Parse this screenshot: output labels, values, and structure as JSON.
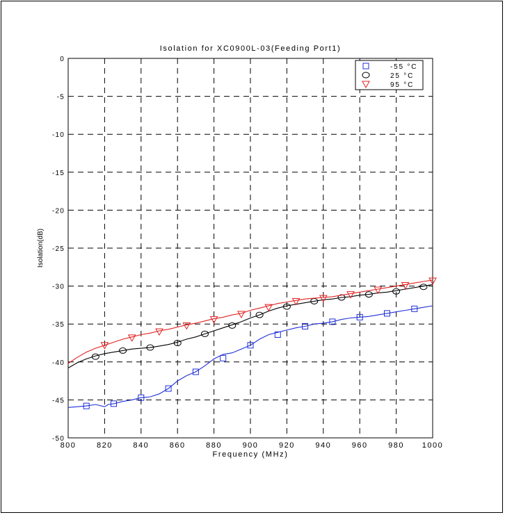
{
  "chart_data": {
    "type": "line",
    "title": "Isolation for XC0900L-03(Feeding Port1)",
    "xlabel": "Frequency (MHz)",
    "ylabel": "Isolation(dB)",
    "xlim": [
      800,
      1000
    ],
    "ylim": [
      -50,
      0
    ],
    "x_ticks": [
      800,
      820,
      840,
      860,
      880,
      900,
      920,
      940,
      960,
      980,
      1000
    ],
    "x_tick_labels": [
      "800",
      "820",
      "840",
      "860",
      "880",
      "900",
      "920",
      "940",
      "960",
      "980",
      "1000"
    ],
    "y_ticks": [
      0,
      -5,
      -10,
      -15,
      -20,
      -25,
      -30,
      -35,
      -40,
      -45,
      -50
    ],
    "y_tick_labels": [
      "0",
      "-5",
      "-10",
      "-15",
      "-20",
      "-25",
      "-30",
      "-35",
      "-40",
      "-45",
      "-50"
    ],
    "grid": true,
    "grid_style": "dashed",
    "legend_position": "top-right",
    "series": [
      {
        "name": "-55 °C",
        "color": "#1f2fd6",
        "marker": "square",
        "x": [
          800,
          805,
          810,
          815,
          820,
          822,
          825,
          830,
          835,
          840,
          845,
          850,
          855,
          860,
          865,
          870,
          875,
          880,
          885,
          890,
          895,
          900,
          905,
          910,
          915,
          920,
          925,
          930,
          935,
          940,
          945,
          950,
          955,
          960,
          965,
          970,
          975,
          980,
          985,
          990,
          995,
          1000
        ],
        "y": [
          -46.0,
          -45.9,
          -45.8,
          -45.6,
          -45.9,
          -45.6,
          -45.5,
          -45.2,
          -45.0,
          -44.7,
          -44.6,
          -44.2,
          -43.5,
          -42.5,
          -41.8,
          -41.3,
          -40.5,
          -39.6,
          -39.0,
          -38.8,
          -38.3,
          -37.8,
          -37.0,
          -36.4,
          -36.1,
          -35.8,
          -35.5,
          -35.3,
          -35.0,
          -34.9,
          -34.7,
          -34.4,
          -34.2,
          -34.1,
          -34.0,
          -33.8,
          -33.6,
          -33.4,
          -33.2,
          -33.0,
          -32.8,
          -32.6
        ],
        "marker_x": [
          810,
          825,
          840,
          855,
          870,
          885,
          900,
          915,
          930,
          945,
          960,
          975,
          990
        ],
        "marker_y": [
          -45.8,
          -45.5,
          -44.7,
          -43.5,
          -41.3,
          -39.5,
          -37.8,
          -36.4,
          -35.3,
          -34.7,
          -34.1,
          -33.6,
          -33.0
        ]
      },
      {
        "name": "25 °C",
        "color": "#000000",
        "marker": "circle",
        "x": [
          800,
          805,
          810,
          815,
          820,
          825,
          830,
          835,
          840,
          845,
          850,
          855,
          860,
          865,
          870,
          875,
          880,
          885,
          890,
          895,
          900,
          905,
          910,
          915,
          920,
          925,
          930,
          935,
          940,
          945,
          950,
          955,
          960,
          965,
          970,
          975,
          980,
          985,
          990,
          995,
          1000
        ],
        "y": [
          -40.8,
          -40.1,
          -39.6,
          -39.2,
          -38.9,
          -38.7,
          -38.5,
          -38.3,
          -38.2,
          -38.1,
          -37.9,
          -37.7,
          -37.4,
          -37.0,
          -36.7,
          -36.3,
          -35.9,
          -35.5,
          -35.1,
          -34.7,
          -34.2,
          -33.8,
          -33.3,
          -32.9,
          -32.6,
          -32.4,
          -32.2,
          -32.0,
          -31.8,
          -31.7,
          -31.5,
          -31.4,
          -31.2,
          -31.1,
          -30.9,
          -30.8,
          -30.6,
          -30.4,
          -30.2,
          -30.0,
          -29.8
        ],
        "marker_x": [
          815,
          830,
          845,
          860,
          875,
          890,
          905,
          920,
          935,
          950,
          965,
          980,
          995
        ],
        "marker_y": [
          -39.3,
          -38.5,
          -38.1,
          -37.5,
          -36.3,
          -35.2,
          -33.8,
          -32.7,
          -32.0,
          -31.5,
          -31.1,
          -30.7,
          -30.1
        ]
      },
      {
        "name": "95 °C",
        "color": "#e02020",
        "marker": "triangle-down",
        "x": [
          800,
          805,
          810,
          815,
          820,
          825,
          830,
          835,
          840,
          845,
          850,
          855,
          860,
          865,
          870,
          875,
          880,
          885,
          890,
          895,
          900,
          905,
          910,
          915,
          920,
          925,
          930,
          935,
          940,
          945,
          950,
          955,
          960,
          965,
          970,
          975,
          980,
          985,
          990,
          995,
          1000
        ],
        "y": [
          -40.2,
          -39.4,
          -38.7,
          -38.2,
          -37.8,
          -37.4,
          -37.0,
          -36.7,
          -36.4,
          -36.2,
          -35.9,
          -35.7,
          -35.4,
          -35.1,
          -34.9,
          -34.6,
          -34.3,
          -34.1,
          -33.8,
          -33.6,
          -33.2,
          -32.9,
          -32.6,
          -32.3,
          -32.1,
          -31.9,
          -31.7,
          -31.6,
          -31.5,
          -31.4,
          -31.2,
          -31.0,
          -30.8,
          -30.6,
          -30.4,
          -30.2,
          -30.0,
          -29.8,
          -29.6,
          -29.4,
          -29.2
        ],
        "marker_x": [
          820,
          835,
          850,
          865,
          880,
          895,
          910,
          925,
          940,
          955,
          970,
          985,
          1000
        ],
        "marker_y": [
          -37.8,
          -36.8,
          -36.0,
          -35.2,
          -34.4,
          -33.7,
          -32.8,
          -32.0,
          -31.6,
          -31.1,
          -30.5,
          -29.9,
          -29.3
        ]
      }
    ]
  }
}
